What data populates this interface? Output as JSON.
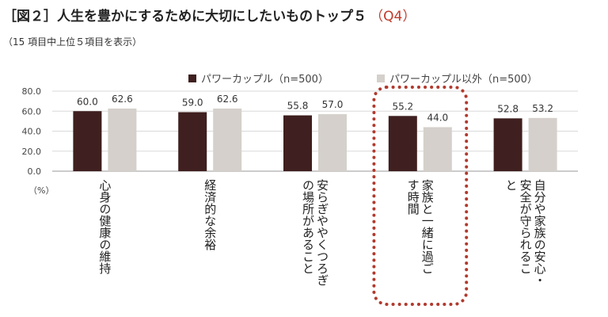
{
  "header": {
    "figure_label": "［図２］",
    "title": "人生を豊かにするために大切にしたいものトップ５",
    "qlabel": "（Q4）",
    "subtitle": "（15 項目中上位５項目を表示）"
  },
  "colors": {
    "power": "#3f1f1f",
    "other": "#d5d0cb",
    "highlight": "#b03a2e",
    "grid": "#d9d9d9"
  },
  "chart_data": {
    "type": "bar",
    "categories": [
      "心身の健康の維持",
      "経済的な余裕",
      "安らぎややくつろぎの場所があること",
      "家族と一緒に過ごす時間",
      "自分や家族の安心・安全が守られること"
    ],
    "category_lines": [
      [
        "心身の健康の維持"
      ],
      [
        "経済的な余裕"
      ],
      [
        "安らぎややくつろぎ",
        "の場所があること"
      ],
      [
        "家族と一緒に過ご",
        "す時間"
      ],
      [
        "自分や家族の安心・",
        "安全が守られるこ",
        "と"
      ]
    ],
    "series": [
      {
        "name": "パワーカップル（n=500）",
        "values": [
          60.0,
          59.0,
          55.8,
          55.2,
          52.8
        ]
      },
      {
        "name": "パワーカップル以外（n=500）",
        "values": [
          62.6,
          62.6,
          57.0,
          44.0,
          53.2
        ]
      }
    ],
    "value_labels": [
      [
        "60.0",
        "59.0",
        "55.8",
        "55.2",
        "52.8"
      ],
      [
        "62.6",
        "62.6",
        "57.0",
        "44.0",
        "53.2"
      ]
    ],
    "ylim": [
      0,
      80
    ],
    "yticks": [
      "0.0",
      "20.0",
      "40.0",
      "60.0",
      "80.0"
    ],
    "ylabel": "（%）",
    "highlighted_category": 3,
    "legend_position": "top-right"
  }
}
